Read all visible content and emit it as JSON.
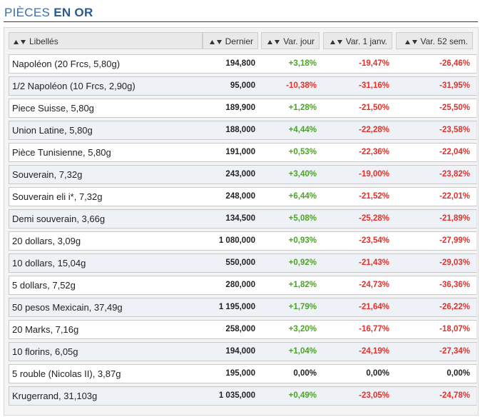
{
  "header": {
    "title": [
      "PIÈCES",
      "EN OR"
    ]
  },
  "table": {
    "columns": [
      "Libellés",
      "Dernier",
      "Var. jour",
      "Var. 1 janv.",
      "Var. 52 sem."
    ],
    "rows": [
      [
        "Napoléon (20 Frcs, 5,80g)",
        "194,800",
        "+3,18%",
        "-19,47%",
        "-26,46%"
      ],
      [
        "1/2 Napoléon (10 Frcs, 2,90g)",
        "95,000",
        "-10,38%",
        "-31,16%",
        "-31,95%"
      ],
      [
        "Piece Suisse, 5,80g",
        "189,900",
        "+1,28%",
        "-21,50%",
        "-25,50%"
      ],
      [
        "Union Latine, 5,80g",
        "188,000",
        "+4,44%",
        "-22,28%",
        "-23,58%"
      ],
      [
        "Pièce Tunisienne, 5,80g",
        "191,000",
        "+0,53%",
        "-22,36%",
        "-22,04%"
      ],
      [
        "Souverain, 7,32g",
        "243,000",
        "+3,40%",
        "-19,00%",
        "-23,82%"
      ],
      [
        "Souverain eli i*, 7,32g",
        "248,000",
        "+6,44%",
        "-21,52%",
        "-22,01%"
      ],
      [
        "Demi souverain, 3,66g",
        "134,500",
        "+5,08%",
        "-25,28%",
        "-21,89%"
      ],
      [
        "20 dollars, 3,09g",
        "1 080,000",
        "+0,93%",
        "-23,54%",
        "-27,99%"
      ],
      [
        "10 dollars, 15,04g",
        "550,000",
        "+0,92%",
        "-21,43%",
        "-29,03%"
      ],
      [
        "5 dollars, 7,52g",
        "280,000",
        "+1,82%",
        "-24,73%",
        "-36,36%"
      ],
      [
        "50 pesos Mexicain, 37,49g",
        "1 195,000",
        "+1,79%",
        "-21,64%",
        "-26,22%"
      ],
      [
        "20 Marks, 7,16g",
        "258,000",
        "+3,20%",
        "-16,77%",
        "-18,07%"
      ],
      [
        "10 florins, 6,05g",
        "194,000",
        "+1,04%",
        "-24,19%",
        "-27,34%"
      ],
      [
        "5 rouble (Nicolas II), 3,87g",
        "195,000",
        "0,00%",
        "0,00%",
        "0,00%"
      ],
      [
        "Krugerrand, 31,103g",
        "1 035,000",
        "+0,49%",
        "-23,05%",
        "-24,78%"
      ]
    ]
  }
}
